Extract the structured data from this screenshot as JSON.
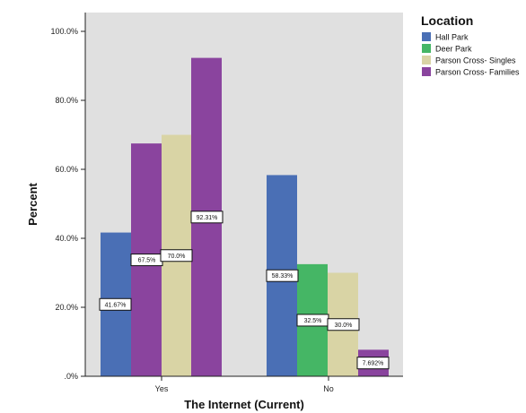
{
  "chart_data": {
    "type": "bar",
    "xlabel": "The Internet (Current)",
    "ylabel": "Percent",
    "categories": [
      "Yes",
      "No"
    ],
    "ylim": [
      0,
      100
    ],
    "yticks": [
      "100.0%",
      "80.0%",
      "60.0%",
      "40.0%",
      "20.0%",
      ".0%"
    ],
    "legend": {
      "title": "Location",
      "position": "right"
    },
    "series": [
      {
        "name": "Hall Park",
        "color": "#4a6fb5",
        "values": [
          41.67,
          58.33
        ],
        "labels": [
          "41.67%",
          "58.33%"
        ]
      },
      {
        "name": "Deer Park",
        "color": "#45b665",
        "values": [
          null,
          32.5
        ],
        "labels": [
          "",
          "32.5%"
        ]
      },
      {
        "name": "Parson Cross- Singles",
        "color": "#d9d4a5",
        "values": [
          70.0,
          30.0
        ],
        "labels": [
          "70.0%",
          "30.0%"
        ]
      },
      {
        "name": "Parson Cross- Families",
        "color": "#8a449e",
        "values": [
          92.31,
          7.692
        ],
        "labels": [
          "92.31%",
          "7.692%"
        ]
      }
    ],
    "extra_bars": [
      {
        "category": "Yes",
        "color": "#8a449e",
        "value": 67.5,
        "label": "67.5%"
      }
    ]
  }
}
